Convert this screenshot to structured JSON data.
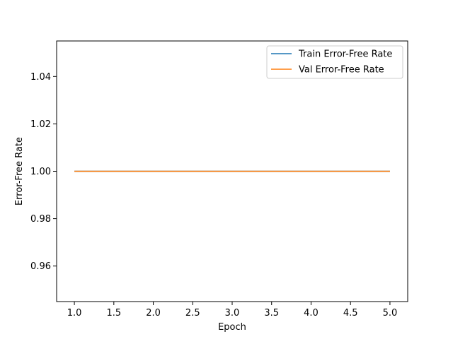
{
  "chart_data": {
    "type": "line",
    "title": "",
    "xlabel": "Epoch",
    "ylabel": "Error-Free Rate",
    "xlim": [
      0.775,
      5.225
    ],
    "ylim": [
      0.945,
      1.055
    ],
    "xticks": [
      "1.0",
      "1.5",
      "2.0",
      "2.5",
      "3.0",
      "3.5",
      "4.0",
      "4.5",
      "5.0"
    ],
    "yticks": [
      "0.96",
      "0.98",
      "1.00",
      "1.02",
      "1.04"
    ],
    "grid": false,
    "legend_position": "top-right",
    "x": [
      1,
      2,
      3,
      4,
      5
    ],
    "series": [
      {
        "name": "Train Error-Free Rate",
        "values": [
          1.0,
          1.0,
          1.0,
          1.0,
          1.0
        ],
        "color": "#1f77b4"
      },
      {
        "name": "Val Error-Free Rate",
        "values": [
          1.0,
          1.0,
          1.0,
          1.0,
          1.0
        ],
        "color": "#ff7f0e"
      }
    ]
  }
}
